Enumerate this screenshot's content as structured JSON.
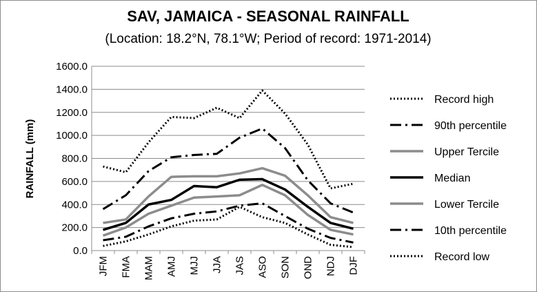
{
  "chart_data": {
    "type": "line",
    "title": "SAV, JAMAICA - SEASONAL RAINFALL",
    "subtitle": "(Location: 18.2°N, 78.1°W; Period of record: 1971-2014)",
    "ylabel": "RAINFALL (mm)",
    "xlabel": "",
    "ylim": [
      0,
      1600
    ],
    "yticks": [
      "0.0",
      "200.0",
      "400.0",
      "600.0",
      "800.0",
      "1000.0",
      "1200.0",
      "1400.0",
      "1600.0"
    ],
    "grid": "horizontal",
    "legend_position": "right",
    "categories": [
      "JFM",
      "FMA",
      "MAM",
      "AMJ",
      "MJJ",
      "JJA",
      "JAS",
      "ASO",
      "SON",
      "OND",
      "NDJ",
      "DJF"
    ],
    "series": [
      {
        "name": "Record high",
        "style": "dotted",
        "color": "#000000",
        "values": [
          730,
          680,
          940,
          1160,
          1150,
          1240,
          1150,
          1390,
          1190,
          920,
          540,
          580
        ]
      },
      {
        "name": "90th percentile",
        "style": "dashdot",
        "color": "#000000",
        "values": [
          360,
          480,
          690,
          810,
          830,
          840,
          980,
          1060,
          890,
          610,
          410,
          330
        ]
      },
      {
        "name": "Upper Tercile",
        "style": "solid-gray",
        "color": "#8c8c8c",
        "values": [
          240,
          270,
          470,
          640,
          645,
          645,
          670,
          715,
          650,
          480,
          290,
          240
        ]
      },
      {
        "name": "Median",
        "style": "solid",
        "color": "#000000",
        "values": [
          180,
          240,
          400,
          440,
          560,
          550,
          615,
          620,
          530,
          380,
          240,
          190
        ]
      },
      {
        "name": "Lower Tercile",
        "style": "solid-gray",
        "color": "#8c8c8c",
        "values": [
          130,
          200,
          320,
          390,
          460,
          470,
          480,
          570,
          480,
          310,
          180,
          140
        ]
      },
      {
        "name": "10th percentile",
        "style": "dashdot",
        "color": "#000000",
        "values": [
          90,
          120,
          210,
          280,
          320,
          340,
          390,
          410,
          300,
          190,
          110,
          70
        ]
      },
      {
        "name": "Record low",
        "style": "dotted",
        "color": "#000000",
        "values": [
          40,
          80,
          140,
          210,
          260,
          270,
          380,
          290,
          240,
          140,
          50,
          30
        ]
      }
    ]
  }
}
